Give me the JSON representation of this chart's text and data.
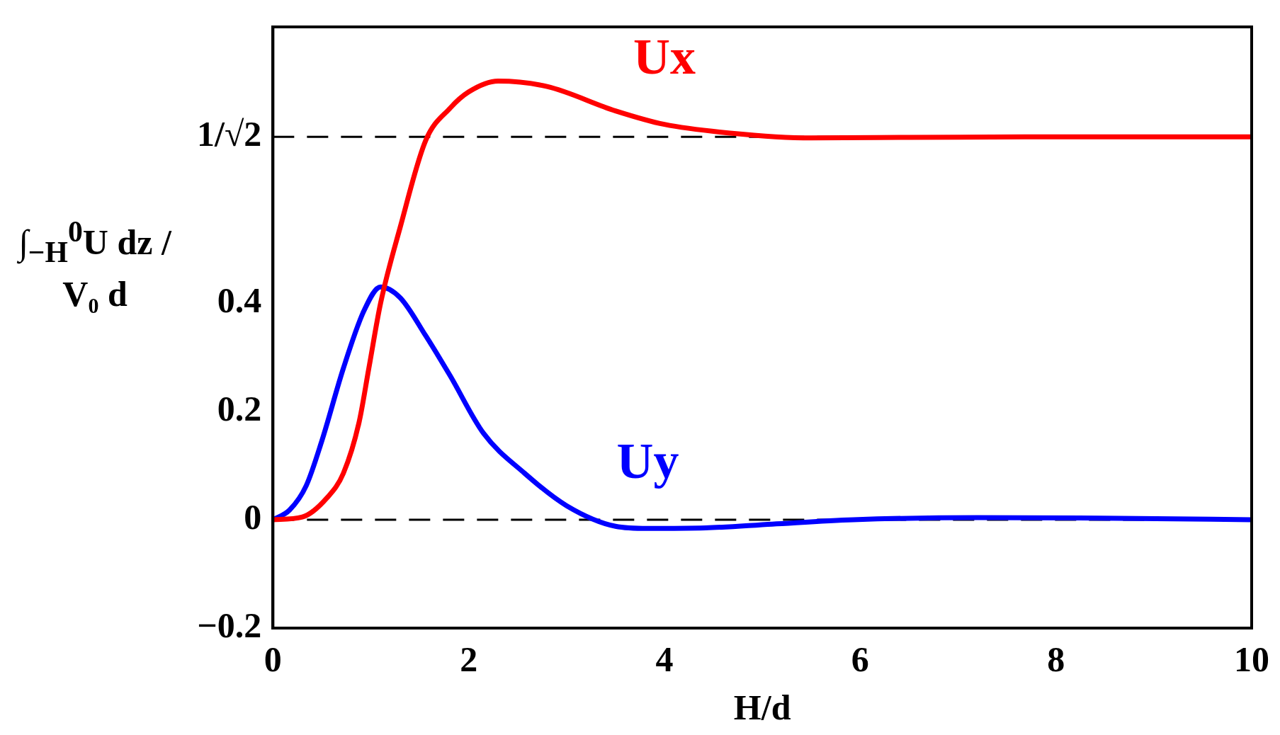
{
  "chart_data": {
    "type": "line",
    "xlabel": "H/d",
    "ylabel": "∫$_{−H}$$^{0}$U dz / V₀ d",
    "xlim": [
      0,
      10
    ],
    "xticks": [
      0,
      2,
      4,
      6,
      8,
      10
    ],
    "ylim": [
      -0.2,
      0.91
    ],
    "yticks": [
      {
        "value": -0.2,
        "label": "−0.2"
      },
      0,
      0.2,
      0.4,
      {
        "value": 0.7071,
        "label": "1/√2"
      }
    ],
    "grid": false,
    "legend": false,
    "marker": "none",
    "line_style": "solid",
    "ref_lines": [
      {
        "axis": "y",
        "value": 0,
        "color": "#000000",
        "line_style": "dashed"
      },
      {
        "axis": "y",
        "value": 0.7071,
        "color": "#000000",
        "line_style": "dashed"
      }
    ],
    "series": [
      {
        "name": "Ux",
        "color": "#ff0000",
        "x": [
          0,
          0.3,
          0.55,
          0.72,
          0.88,
          0.98,
          1.1,
          1.3,
          1.56,
          1.81,
          2.0,
          2.3,
          2.8,
          3.5,
          4.0,
          4.67,
          5.5,
          6.5,
          8,
          10
        ],
        "values": [
          0,
          0.005,
          0.04,
          0.086,
          0.18,
          0.28,
          0.4,
          0.54,
          0.7,
          0.76,
          0.79,
          0.81,
          0.8,
          0.755,
          0.73,
          0.714,
          0.705,
          0.706,
          0.707,
          0.707
        ]
      },
      {
        "name": "Uy",
        "color": "#0000ff",
        "x": [
          0,
          0.17,
          0.34,
          0.5,
          0.72,
          0.93,
          1.1,
          1.3,
          1.56,
          1.81,
          2.15,
          2.57,
          3.0,
          3.5,
          3.83,
          4.42,
          5.1,
          5.93,
          7.2,
          8.46,
          10
        ],
        "values": [
          0,
          0.018,
          0.063,
          0.146,
          0.28,
          0.386,
          0.43,
          0.41,
          0.34,
          0.266,
          0.16,
          0.086,
          0.026,
          -0.012,
          -0.016,
          -0.015,
          -0.008,
          0,
          0.004,
          0.003,
          0
        ]
      }
    ]
  }
}
